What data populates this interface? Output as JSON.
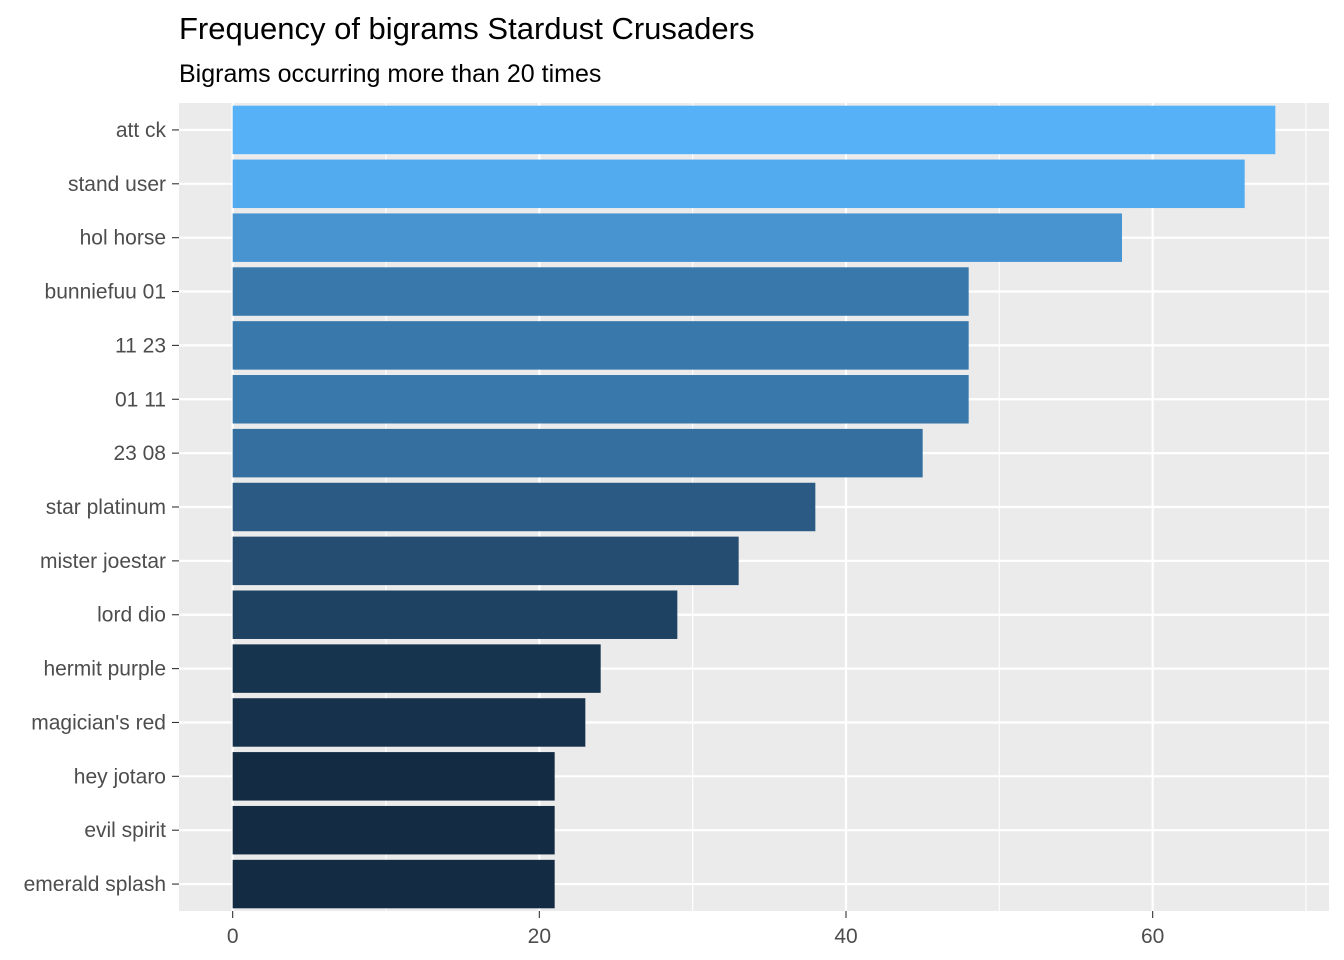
{
  "chart_data": {
    "type": "bar",
    "orientation": "horizontal",
    "title": "Frequency of bigrams Stardust Crusaders",
    "subtitle": "Bigrams occurring more than 20 times",
    "xlabel": "",
    "ylabel": "",
    "categories": [
      "att ck",
      "stand user",
      "hol horse",
      "bunniefuu 01",
      "11 23",
      "01 11",
      "23 08",
      "star platinum",
      "mister joestar",
      "lord dio",
      "hermit purple",
      "magician's red",
      "hey jotaro",
      "evil spirit",
      "emerald splash"
    ],
    "values": [
      68,
      66,
      58,
      48,
      48,
      48,
      45,
      38,
      33,
      29,
      24,
      23,
      21,
      21,
      21
    ],
    "xlim": [
      -3.5,
      71.5
    ],
    "x_ticks": [
      0,
      20,
      40,
      60
    ],
    "grid": true,
    "legend": "none",
    "fill_scale": {
      "low": "#132B43",
      "high": "#56B1F7",
      "domain": [
        21,
        68
      ]
    },
    "panel_background": "#EBEBEB"
  }
}
